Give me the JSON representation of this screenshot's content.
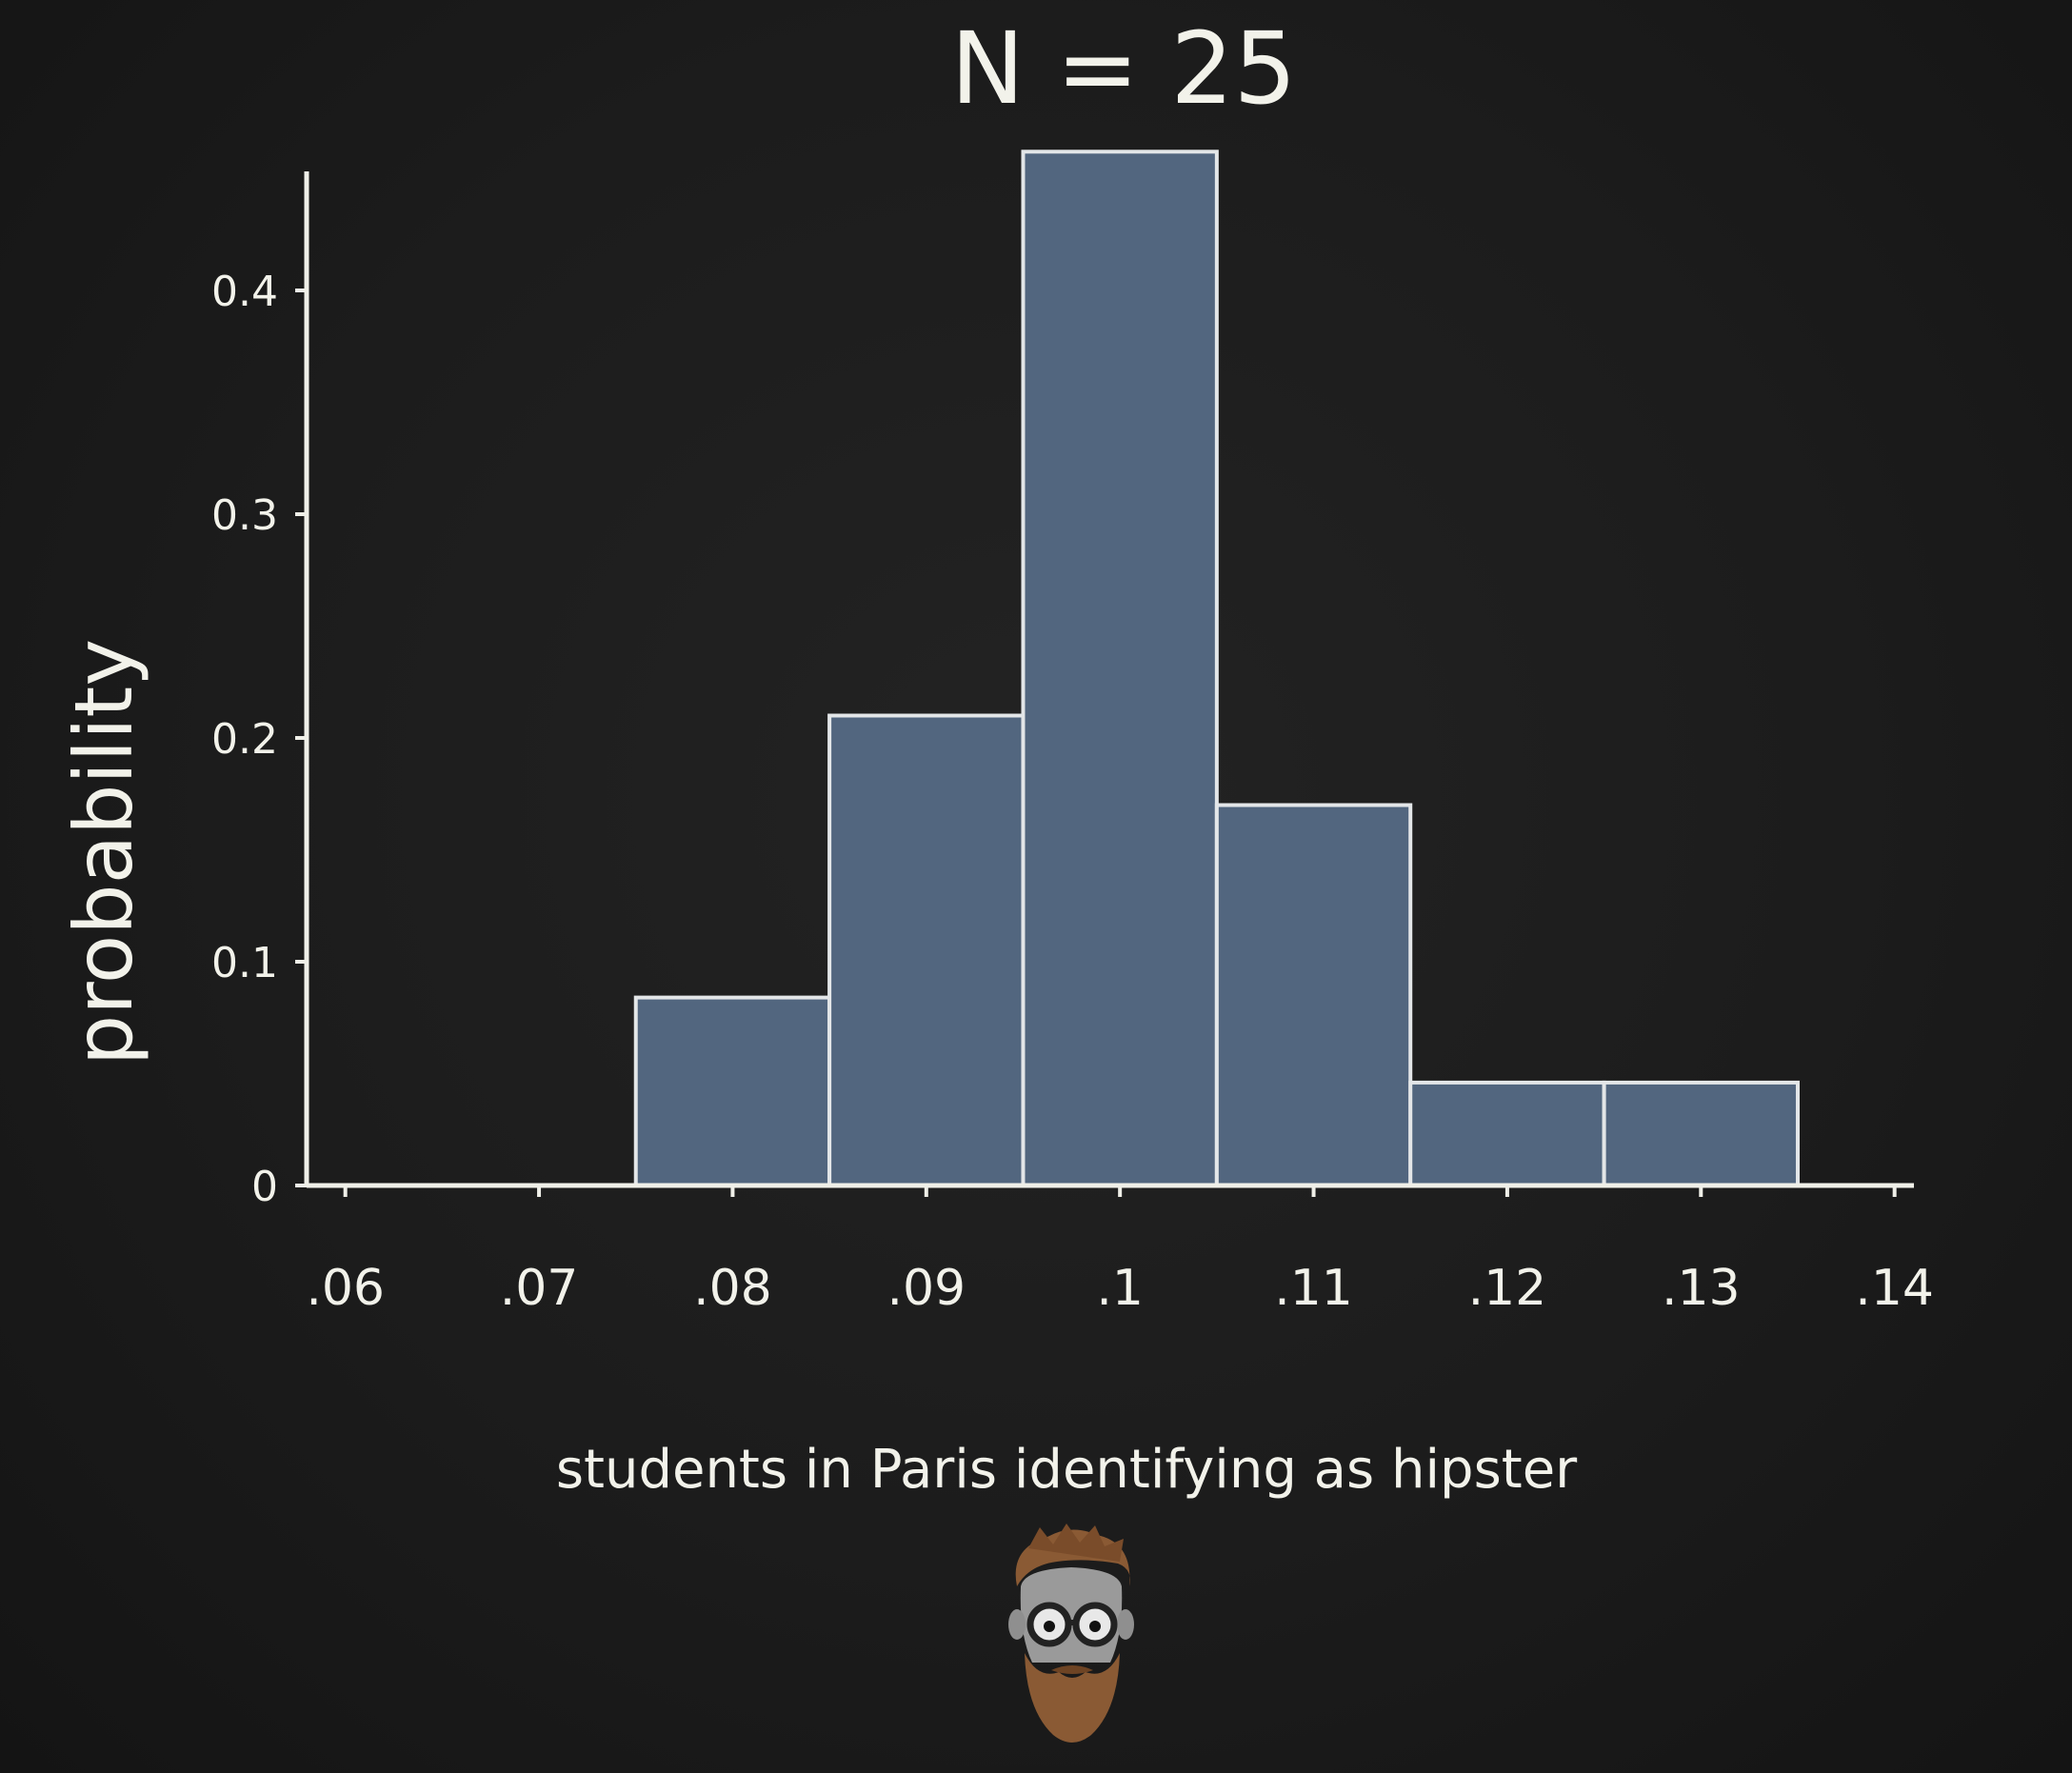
{
  "chart_data": {
    "type": "bar",
    "title": "N = 25",
    "xlabel": "students in Paris identifying as hipster",
    "ylabel": "probability",
    "x_ticks": [
      0.06,
      0.07,
      0.08,
      0.09,
      0.1,
      0.11,
      0.12,
      0.13,
      0.14
    ],
    "x_tick_labels": [
      ".06",
      ".07",
      ".08",
      ".09",
      ".1",
      ".11",
      ".12",
      ".13",
      ".14"
    ],
    "y_ticks": [
      0,
      0.1,
      0.2,
      0.3,
      0.4
    ],
    "y_tick_labels": [
      "0",
      "0.1",
      "0.2",
      "0.3",
      "0.4"
    ],
    "xlim": [
      0.058,
      0.141
    ],
    "ylim": [
      0,
      0.46
    ],
    "bin_width": 0.01,
    "categories": [
      0.08,
      0.09,
      0.1,
      0.11,
      0.12,
      0.13
    ],
    "values": [
      0.084,
      0.21,
      0.462,
      0.17,
      0.046,
      0.046
    ],
    "grid": false,
    "colors": {
      "bar": "#52667f",
      "bar_edge": "#e3e6e8",
      "axis": "#efefe8",
      "background": "#1b1b1b"
    }
  },
  "mascot": {
    "icon": "hipster-mascot-icon"
  }
}
